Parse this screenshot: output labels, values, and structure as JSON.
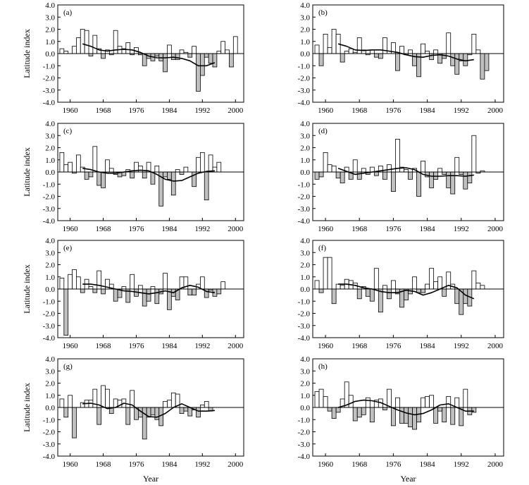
{
  "chart_data": [
    {
      "type": "bar",
      "panel_label": "(a)",
      "ylabel": "Latitude index",
      "xlabel": "",
      "x": [
        1958,
        1959,
        1960,
        1961,
        1962,
        1963,
        1964,
        1965,
        1966,
        1967,
        1968,
        1969,
        1970,
        1971,
        1972,
        1973,
        1974,
        1975,
        1976,
        1977,
        1978,
        1979,
        1980,
        1981,
        1982,
        1983,
        1984,
        1985,
        1986,
        1987,
        1988,
        1989,
        1990,
        1991,
        1992,
        1993,
        1994,
        1995,
        1996,
        1997,
        1998,
        1999,
        2000,
        2001
      ],
      "values": [
        0.4,
        0.2,
        0.0,
        0.6,
        1.3,
        2.0,
        1.9,
        -0.2,
        1.5,
        0.4,
        -0.4,
        0.3,
        -0.1,
        1.9,
        0.6,
        0.4,
        0.9,
        -0.1,
        0.5,
        -0.1,
        -1.0,
        -0.4,
        -0.6,
        -0.2,
        -0.6,
        -1.5,
        0.7,
        -0.5,
        -0.5,
        0.3,
        0.1,
        -0.3,
        0.6,
        -3.1,
        -1.8,
        -0.3,
        -0.8,
        -1.1,
        0.2,
        1.0,
        0.3,
        -1.1,
        1.4,
        0.0
      ],
      "trend": {
        "x": [
          1963,
          1965,
          1967,
          1969,
          1971,
          1973,
          1975,
          1977,
          1979,
          1981,
          1983,
          1985,
          1987,
          1989,
          1991,
          1993,
          1995
        ],
        "y": [
          0.8,
          0.6,
          0.3,
          0.2,
          0.3,
          0.35,
          0.3,
          0.1,
          -0.2,
          -0.35,
          -0.35,
          -0.3,
          -0.4,
          -0.6,
          -1.0,
          -1.0,
          -0.75
        ]
      },
      "ylim": [
        -4,
        4
      ],
      "yticks": [
        "4.0",
        "3.0",
        "2.0",
        "1.0",
        "0.0",
        "-1.0",
        "-2.0",
        "-3.0",
        "-4.0"
      ],
      "xticks": [
        1960,
        1968,
        1976,
        1984,
        1992,
        2000
      ],
      "xlim": [
        1957,
        2002
      ]
    },
    {
      "type": "bar",
      "panel_label": "(b)",
      "ylabel": "",
      "xlabel": "",
      "x": [
        1958,
        1959,
        1960,
        1961,
        1962,
        1963,
        1964,
        1965,
        1966,
        1967,
        1968,
        1969,
        1970,
        1971,
        1972,
        1973,
        1974,
        1975,
        1976,
        1977,
        1978,
        1979,
        1980,
        1981,
        1982,
        1983,
        1984,
        1985,
        1986,
        1987,
        1988,
        1989,
        1990,
        1991,
        1992,
        1993,
        1994,
        1995,
        1996,
        1997,
        1998,
        1999,
        2000,
        2001
      ],
      "values": [
        0.7,
        -1.0,
        1.6,
        0.5,
        2.0,
        1.6,
        -0.7,
        0.2,
        0.4,
        0.1,
        1.3,
        0.3,
        -0.1,
        0.3,
        -0.3,
        -0.4,
        1.3,
        0.0,
        0.9,
        -1.4,
        0.6,
        -0.1,
        0.3,
        -1.0,
        -1.9,
        0.8,
        0.2,
        -0.5,
        0.3,
        -0.8,
        -0.4,
        1.7,
        -1.0,
        -1.7,
        -0.6,
        -1.0,
        -0.1,
        1.6,
        0.3,
        -2.1,
        -1.4,
        0.0,
        0.0,
        0.0
      ],
      "trend": {
        "x": [
          1963,
          1965,
          1967,
          1969,
          1971,
          1973,
          1975,
          1977,
          1979,
          1981,
          1983,
          1985,
          1987,
          1989,
          1991,
          1993,
          1995
        ],
        "y": [
          0.8,
          0.6,
          0.3,
          0.25,
          0.3,
          0.3,
          0.2,
          0.1,
          -0.1,
          -0.25,
          -0.3,
          -0.15,
          -0.1,
          -0.2,
          -0.45,
          -0.6,
          -0.5
        ]
      },
      "ylim": [
        -4,
        4
      ],
      "yticks": [
        "4.0",
        "3.0",
        "2.0",
        "1.0",
        "0.0",
        "-1.0",
        "-2.0",
        "-3.0",
        "-4.0"
      ],
      "xticks": [
        1960,
        1968,
        1976,
        1984,
        1992,
        2000
      ],
      "xlim": [
        1957,
        2002
      ]
    },
    {
      "type": "bar",
      "panel_label": "(c)",
      "ylabel": "Latitude index",
      "xlabel": "",
      "x": [
        1958,
        1959,
        1960,
        1961,
        1962,
        1963,
        1964,
        1965,
        1966,
        1967,
        1968,
        1969,
        1970,
        1971,
        1972,
        1973,
        1974,
        1975,
        1976,
        1977,
        1978,
        1979,
        1980,
        1981,
        1982,
        1983,
        1984,
        1985,
        1986,
        1987,
        1988,
        1989,
        1990,
        1991,
        1992,
        1993,
        1994,
        1995,
        1996,
        1997,
        1998,
        1999,
        2000,
        2001
      ],
      "values": [
        1.6,
        0.6,
        0.8,
        -0.1,
        1.4,
        0.4,
        -0.6,
        -0.4,
        2.1,
        -1.1,
        -1.3,
        1.0,
        0.3,
        -0.2,
        -0.4,
        -0.3,
        0.2,
        -0.5,
        0.8,
        0.5,
        -0.5,
        0.8,
        -1.0,
        0.5,
        -2.8,
        -0.4,
        -0.6,
        -1.9,
        0.2,
        -0.2,
        0.4,
        0.0,
        -1.2,
        1.2,
        1.6,
        -2.3,
        1.4,
        0.4,
        0.8,
        0.0,
        0.0,
        0.0,
        0.0,
        0.0
      ],
      "trend": {
        "x": [
          1963,
          1965,
          1967,
          1969,
          1971,
          1973,
          1975,
          1977,
          1979,
          1981,
          1983,
          1985,
          1987,
          1989,
          1991,
          1993,
          1995
        ],
        "y": [
          0.3,
          0.2,
          0.0,
          -0.1,
          -0.1,
          0.0,
          0.1,
          0.15,
          0.1,
          -0.2,
          -0.6,
          -0.75,
          -0.7,
          -0.4,
          -0.1,
          0.05,
          0.1
        ]
      },
      "ylim": [
        -4,
        4
      ],
      "yticks": [
        "4.0",
        "3.0",
        "2.0",
        "1.0",
        "0.0",
        "-1.0",
        "-2.0",
        "-3.0",
        "-4.0"
      ],
      "xticks": [
        1960,
        1968,
        1976,
        1984,
        1992,
        2000
      ],
      "xlim": [
        1957,
        2002
      ]
    },
    {
      "type": "bar",
      "panel_label": "(d)",
      "ylabel": "",
      "xlabel": "",
      "x": [
        1958,
        1959,
        1960,
        1961,
        1962,
        1963,
        1964,
        1965,
        1966,
        1967,
        1968,
        1969,
        1970,
        1971,
        1972,
        1973,
        1974,
        1975,
        1976,
        1977,
        1978,
        1979,
        1980,
        1981,
        1982,
        1983,
        1984,
        1985,
        1986,
        1987,
        1988,
        1989,
        1990,
        1991,
        1992,
        1993,
        1994,
        1995,
        1996,
        1997,
        1998,
        1999,
        2000,
        2001
      ],
      "values": [
        -0.6,
        -0.4,
        1.6,
        0.6,
        0.5,
        -0.5,
        -0.9,
        0.4,
        -0.6,
        1.0,
        -0.6,
        0.3,
        -0.2,
        0.4,
        -0.3,
        0.5,
        -0.6,
        0.6,
        -1.6,
        2.7,
        0.4,
        0.2,
        -0.6,
        0.3,
        -2.0,
        0.9,
        -0.4,
        -1.3,
        -0.6,
        0.3,
        -0.2,
        -1.3,
        -1.8,
        1.2,
        -0.2,
        -1.4,
        -0.9,
        3.0,
        -0.1,
        0.1,
        0.0,
        0.0,
        0.0,
        0.0
      ],
      "trend": {
        "x": [
          1963,
          1965,
          1967,
          1969,
          1971,
          1973,
          1975,
          1977,
          1979,
          1981,
          1983,
          1985,
          1987,
          1989,
          1991,
          1993,
          1995
        ],
        "y": [
          0.3,
          0.05,
          -0.2,
          -0.1,
          0.0,
          0.1,
          0.2,
          0.3,
          0.35,
          0.2,
          -0.2,
          -0.35,
          -0.35,
          -0.3,
          -0.3,
          -0.35,
          -0.25
        ]
      },
      "ylim": [
        -4,
        4
      ],
      "yticks": [
        "4.0",
        "3.0",
        "2.0",
        "1.0",
        "0.0",
        "-1.0",
        "-2.0",
        "-3.0",
        "-4.0"
      ],
      "xticks": [
        1960,
        1968,
        1976,
        1984,
        1992,
        2000
      ],
      "xlim": [
        1957,
        2002
      ]
    },
    {
      "type": "bar",
      "panel_label": "(e)",
      "ylabel": "Latitude index",
      "xlabel": "",
      "x": [
        1958,
        1959,
        1960,
        1961,
        1962,
        1963,
        1964,
        1965,
        1966,
        1967,
        1968,
        1969,
        1970,
        1971,
        1972,
        1973,
        1974,
        1975,
        1976,
        1977,
        1978,
        1979,
        1980,
        1981,
        1982,
        1983,
        1984,
        1985,
        1986,
        1987,
        1988,
        1989,
        1990,
        1991,
        1992,
        1993,
        1994,
        1995,
        1996,
        1997,
        1998,
        1999,
        2000,
        2001
      ],
      "values": [
        0.9,
        -3.8,
        1.2,
        1.6,
        1.0,
        -0.3,
        0.8,
        0.2,
        -0.3,
        1.5,
        -0.4,
        0.8,
        0.4,
        -1.0,
        -0.7,
        0.2,
        -1.1,
        1.2,
        -0.6,
        0.3,
        -1.4,
        -1.0,
        0.2,
        -1.2,
        -0.4,
        1.3,
        -1.7,
        -0.6,
        -0.9,
        1.0,
        1.0,
        -0.5,
        -0.5,
        0.4,
        1.0,
        -0.7,
        -0.1,
        -0.6,
        -0.4,
        0.6,
        0.0,
        0.0,
        0.0,
        0.0
      ],
      "trend": {
        "x": [
          1963,
          1965,
          1967,
          1969,
          1971,
          1973,
          1975,
          1977,
          1979,
          1981,
          1983,
          1985,
          1987,
          1989,
          1991,
          1993,
          1995
        ],
        "y": [
          0.4,
          0.4,
          0.3,
          0.15,
          0.0,
          -0.15,
          -0.2,
          -0.3,
          -0.4,
          -0.3,
          -0.15,
          -0.3,
          0.1,
          0.3,
          0.15,
          -0.2,
          -0.3
        ]
      },
      "ylim": [
        -4,
        4
      ],
      "yticks": [
        "4.0",
        "3.0",
        "2.0",
        "1.0",
        "0.0",
        "-1.0",
        "-2.0",
        "-3.0",
        "-4.0"
      ],
      "xticks": [
        1960,
        1968,
        1976,
        1984,
        1992,
        2000
      ],
      "xlim": [
        1957,
        2002
      ]
    },
    {
      "type": "bar",
      "panel_label": "(f)",
      "ylabel": "",
      "xlabel": "",
      "x": [
        1958,
        1959,
        1960,
        1961,
        1962,
        1963,
        1964,
        1965,
        1966,
        1967,
        1968,
        1969,
        1970,
        1971,
        1972,
        1973,
        1974,
        1975,
        1976,
        1977,
        1978,
        1979,
        1980,
        1981,
        1982,
        1983,
        1984,
        1985,
        1986,
        1987,
        1988,
        1989,
        1990,
        1991,
        1992,
        1993,
        1994,
        1995,
        1996,
        1997,
        1998,
        1999,
        2000,
        2001
      ],
      "values": [
        0.7,
        -0.3,
        2.6,
        2.6,
        -1.2,
        0.4,
        0.3,
        0.8,
        0.7,
        0.5,
        -0.8,
        0.2,
        -0.6,
        -1.0,
        1.7,
        -1.9,
        0.3,
        -0.8,
        0.7,
        -0.4,
        -1.5,
        -0.9,
        -0.4,
        1.0,
        -0.3,
        -0.3,
        0.4,
        1.7,
        0.6,
        1.0,
        -0.6,
        1.4,
        0.4,
        -1.2,
        -2.1,
        -1.2,
        -1.4,
        1.5,
        0.5,
        0.3,
        0.0,
        0.0,
        0.0,
        0.0
      ],
      "trend": {
        "x": [
          1963,
          1965,
          1967,
          1969,
          1971,
          1973,
          1975,
          1977,
          1979,
          1981,
          1983,
          1985,
          1987,
          1989,
          1991,
          1993,
          1995
        ],
        "y": [
          0.4,
          0.4,
          0.3,
          0.1,
          0.0,
          -0.2,
          -0.3,
          -0.3,
          -0.1,
          -0.2,
          -0.5,
          -0.3,
          0.0,
          0.3,
          0.1,
          -0.5,
          -0.8
        ]
      },
      "ylim": [
        -4,
        4
      ],
      "yticks": [
        "4.0",
        "3.0",
        "2.0",
        "1.0",
        "0.0",
        "-1.0",
        "-2.0",
        "-3.0",
        "-4.0"
      ],
      "xticks": [
        1960,
        1968,
        1976,
        1984,
        1992,
        2000
      ],
      "xlim": [
        1957,
        2002
      ]
    },
    {
      "type": "bar",
      "panel_label": "(g)",
      "ylabel": "Latitude index",
      "xlabel": "Year",
      "x": [
        1958,
        1959,
        1960,
        1961,
        1962,
        1963,
        1964,
        1965,
        1966,
        1967,
        1968,
        1969,
        1970,
        1971,
        1972,
        1973,
        1974,
        1975,
        1976,
        1977,
        1978,
        1979,
        1980,
        1981,
        1982,
        1983,
        1984,
        1985,
        1986,
        1987,
        1988,
        1989,
        1990,
        1991,
        1992,
        1993,
        1994,
        1995,
        1996,
        1997,
        1998,
        1999,
        2000,
        2001
      ],
      "values": [
        0.7,
        -0.8,
        1.0,
        -2.5,
        0.0,
        0.4,
        0.6,
        0.6,
        1.5,
        -1.4,
        1.8,
        1.5,
        -0.5,
        0.7,
        0.6,
        0.7,
        -1.4,
        1.4,
        -1.0,
        -0.8,
        -2.6,
        -0.8,
        -0.6,
        -1.0,
        -1.5,
        0.5,
        0.6,
        1.2,
        1.1,
        -0.5,
        -0.3,
        -0.7,
        -0.2,
        -0.8,
        0.2,
        0.5,
        -0.3,
        0.0,
        0.0,
        0.0,
        0.0,
        0.0,
        0.0,
        0.0
      ],
      "trend": {
        "x": [
          1963,
          1965,
          1967,
          1969,
          1971,
          1973,
          1975,
          1977,
          1979,
          1981,
          1983,
          1985,
          1987,
          1989,
          1991,
          1993,
          1995
        ],
        "y": [
          0.3,
          0.35,
          0.2,
          -0.1,
          0.0,
          0.35,
          0.2,
          -0.3,
          -0.75,
          -0.8,
          -0.5,
          0.0,
          0.3,
          0.0,
          -0.3,
          -0.3,
          -0.25
        ]
      },
      "ylim": [
        -4,
        4
      ],
      "yticks": [
        "4.0",
        "3.0",
        "2.0",
        "1.0",
        "0.0",
        "-1.0",
        "-2.0",
        "-3.0",
        "-4.0"
      ],
      "xticks": [
        1960,
        1968,
        1976,
        1984,
        1992,
        2000
      ],
      "xlim": [
        1957,
        2002
      ]
    },
    {
      "type": "bar",
      "panel_label": "(h)",
      "ylabel": "",
      "xlabel": "Year",
      "x": [
        1958,
        1959,
        1960,
        1961,
        1962,
        1963,
        1964,
        1965,
        1966,
        1967,
        1968,
        1969,
        1970,
        1971,
        1972,
        1973,
        1974,
        1975,
        1976,
        1977,
        1978,
        1979,
        1980,
        1981,
        1982,
        1983,
        1984,
        1985,
        1986,
        1987,
        1988,
        1989,
        1990,
        1991,
        1992,
        1993,
        1994,
        1995,
        1996,
        1997,
        1998,
        1999,
        2000,
        2001
      ],
      "values": [
        1.3,
        1.5,
        0.9,
        -0.3,
        -0.9,
        -0.4,
        0.7,
        2.1,
        1.0,
        -1.1,
        -0.8,
        -0.6,
        0.8,
        -1.2,
        0.6,
        0.7,
        -0.2,
        1.5,
        -1.5,
        0.8,
        -1.3,
        -1.3,
        -1.6,
        -1.8,
        -1.2,
        0.8,
        0.9,
        1.0,
        -1.3,
        -0.3,
        -1.2,
        0.9,
        -1.4,
        0.8,
        -1.5,
        1.5,
        -0.6,
        -0.4,
        0.0,
        0.0,
        0.0,
        0.0,
        0.0,
        0.0
      ],
      "trend": {
        "x": [
          1963,
          1965,
          1967,
          1969,
          1971,
          1973,
          1975,
          1977,
          1979,
          1981,
          1983,
          1985,
          1987,
          1989,
          1991,
          1993,
          1995
        ],
        "y": [
          0.0,
          0.2,
          0.5,
          0.6,
          0.55,
          0.4,
          0.1,
          -0.2,
          -0.45,
          -0.6,
          -0.5,
          -0.2,
          0.2,
          0.3,
          0.0,
          -0.3,
          -0.3
        ]
      },
      "ylim": [
        -4,
        4
      ],
      "yticks": [
        "4.0",
        "3.0",
        "2.0",
        "1.0",
        "0.0",
        "-1.0",
        "-2.0",
        "-3.0",
        "-4.0"
      ],
      "xticks": [
        1960,
        1968,
        1976,
        1984,
        1992,
        2000
      ],
      "xlim": [
        1957,
        2002
      ]
    }
  ],
  "colors": {
    "positive_bar": "#ffffff",
    "negative_bar": "#c0c0c0",
    "stroke": "#000000",
    "trend": "#000000"
  }
}
